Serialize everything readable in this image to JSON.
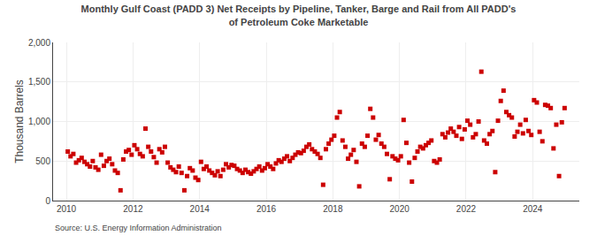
{
  "chart_data": {
    "type": "scatter",
    "title": "Monthly Gulf Coast (PADD 3) Net Receipts by Pipeline, Tanker, Barge and Rail from All PADD's\nof Petroleum Coke Marketable",
    "ylabel": "Thousand Barrels",
    "annotations": [
      "Source: U.S. Energy Information Administration"
    ],
    "color": "#cc0000",
    "marker": "square",
    "grid": true,
    "xlim": [
      2009.6,
      2025.4
    ],
    "xticks": [
      2010,
      2012,
      2014,
      2016,
      2018,
      2020,
      2022,
      2024
    ],
    "ylim": [
      0,
      2000
    ],
    "yticks": [
      0,
      500,
      {
        "value": 1000,
        "label": "1,000"
      },
      {
        "value": 1500,
        "label": "1,500"
      },
      {
        "value": 2000,
        "label": "2,000"
      }
    ],
    "x": [
      2010.0416666666667,
      2010.125,
      2010.2083333333333,
      2010.2916666666667,
      2010.375,
      2010.4583333333333,
      2010.5416666666667,
      2010.625,
      2010.7083333333333,
      2010.7916666666667,
      2010.875,
      2010.9583333333333,
      2011.0416666666667,
      2011.125,
      2011.2083333333333,
      2011.2916666666667,
      2011.375,
      2011.4583333333333,
      2011.5416666666667,
      2011.625,
      2011.7083333333333,
      2011.7916666666667,
      2011.875,
      2011.9583333333333,
      2012.0416666666667,
      2012.125,
      2012.2083333333333,
      2012.2916666666667,
      2012.375,
      2012.4583333333333,
      2012.5416666666667,
      2012.625,
      2012.7083333333333,
      2012.7916666666667,
      2012.875,
      2012.9583333333333,
      2013.0416666666667,
      2013.125,
      2013.2083333333333,
      2013.2916666666667,
      2013.375,
      2013.4583333333333,
      2013.5416666666667,
      2013.625,
      2013.7083333333333,
      2013.7916666666667,
      2013.875,
      2013.9583333333333,
      2014.0416666666667,
      2014.125,
      2014.2083333333333,
      2014.2916666666667,
      2014.375,
      2014.4583333333333,
      2014.5416666666667,
      2014.625,
      2014.7083333333333,
      2014.7916666666667,
      2014.875,
      2014.9583333333333,
      2015.0416666666667,
      2015.125,
      2015.2083333333333,
      2015.2916666666667,
      2015.375,
      2015.4583333333333,
      2015.5416666666667,
      2015.625,
      2015.7083333333333,
      2015.7916666666667,
      2015.875,
      2015.9583333333333,
      2016.0416666666667,
      2016.125,
      2016.2083333333333,
      2016.2916666666667,
      2016.375,
      2016.4583333333333,
      2016.5416666666667,
      2016.625,
      2016.7083333333333,
      2016.7916666666667,
      2016.875,
      2016.9583333333333,
      2017.0416666666667,
      2017.125,
      2017.2083333333333,
      2017.2916666666667,
      2017.375,
      2017.4583333333333,
      2017.5416666666667,
      2017.625,
      2017.7083333333333,
      2017.7916666666667,
      2017.875,
      2017.9583333333333,
      2018.0416666666667,
      2018.125,
      2018.2083333333333,
      2018.2916666666667,
      2018.375,
      2018.4583333333333,
      2018.5416666666667,
      2018.625,
      2018.7083333333333,
      2018.7916666666667,
      2018.875,
      2018.9583333333333,
      2019.0416666666667,
      2019.125,
      2019.2083333333333,
      2019.2916666666667,
      2019.375,
      2019.4583333333333,
      2019.5416666666667,
      2019.625,
      2019.7083333333333,
      2019.7916666666667,
      2019.875,
      2019.9583333333333,
      2020.0416666666667,
      2020.125,
      2020.2083333333333,
      2020.2916666666667,
      2020.375,
      2020.4583333333333,
      2020.5416666666667,
      2020.625,
      2020.7083333333333,
      2020.7916666666667,
      2020.875,
      2020.9583333333333,
      2021.0416666666667,
      2021.125,
      2021.2083333333333,
      2021.2916666666667,
      2021.375,
      2021.4583333333333,
      2021.5416666666667,
      2021.625,
      2021.7083333333333,
      2021.7916666666667,
      2021.875,
      2021.9583333333333,
      2022.0416666666667,
      2022.125,
      2022.2083333333333,
      2022.2916666666667,
      2022.375,
      2022.4583333333333,
      2022.5416666666667,
      2022.625,
      2022.7083333333333,
      2022.7916666666667,
      2022.875,
      2022.9583333333333,
      2023.0416666666667,
      2023.125,
      2023.2083333333333,
      2023.2916666666667,
      2023.375,
      2023.4583333333333,
      2023.5416666666667,
      2023.625,
      2023.7083333333333,
      2023.7916666666667,
      2023.875,
      2023.9583333333333,
      2024.0416666666667,
      2024.125,
      2024.2083333333333,
      2024.2916666666667,
      2024.375,
      2024.4583333333333,
      2024.5416666666667,
      2024.625,
      2024.7083333333333,
      2024.7916666666667,
      2024.875,
      2024.9583333333333
    ],
    "values": [
      620,
      560,
      590,
      480,
      510,
      540,
      490,
      460,
      430,
      500,
      420,
      390,
      580,
      440,
      500,
      530,
      460,
      380,
      350,
      130,
      520,
      620,
      640,
      580,
      700,
      650,
      590,
      560,
      910,
      680,
      620,
      550,
      480,
      650,
      610,
      680,
      480,
      420,
      390,
      360,
      430,
      350,
      130,
      310,
      410,
      380,
      290,
      260,
      490,
      400,
      430,
      380,
      350,
      320,
      370,
      310,
      390,
      460,
      420,
      450,
      440,
      400,
      380,
      350,
      390,
      360,
      340,
      370,
      400,
      430,
      380,
      410,
      460,
      430,
      400,
      470,
      510,
      490,
      530,
      560,
      500,
      540,
      580,
      610,
      600,
      630,
      680,
      710,
      650,
      620,
      590,
      540,
      200,
      650,
      720,
      770,
      820,
      1050,
      1120,
      760,
      680,
      530,
      580,
      640,
      490,
      180,
      720,
      680,
      820,
      1160,
      1050,
      770,
      830,
      720,
      680,
      590,
      270,
      560,
      530,
      510,
      560,
      1020,
      730,
      480,
      240,
      540,
      620,
      680,
      660,
      700,
      730,
      760,
      500,
      480,
      520,
      840,
      800,
      860,
      910,
      870,
      820,
      930,
      780,
      900,
      1010,
      960,
      800,
      840,
      1000,
      1630,
      760,
      720,
      840,
      880,
      360,
      1010,
      1260,
      1390,
      1120,
      1080,
      1050,
      810,
      870,
      960,
      850,
      1020,
      880,
      830,
      1270,
      1240,
      870,
      750,
      1210,
      1200,
      1170,
      660,
      960,
      310,
      990,
      1170
    ]
  }
}
